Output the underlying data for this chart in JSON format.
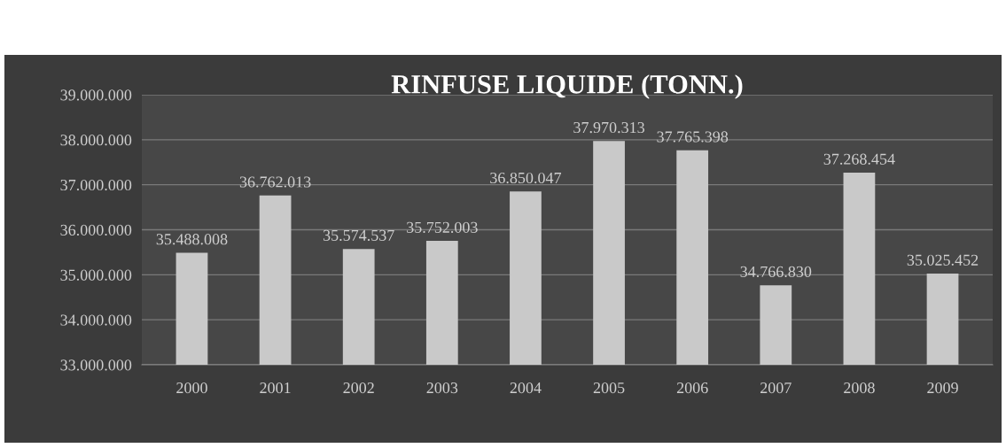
{
  "chart_data": {
    "type": "bar",
    "title": "RINFUSE LIQUIDE (TONN.)",
    "categories": [
      "2000",
      "2001",
      "2002",
      "2003",
      "2004",
      "2005",
      "2006",
      "2007",
      "2008",
      "2009"
    ],
    "values": [
      35488008,
      36762013,
      35574537,
      35752003,
      36850047,
      37970313,
      37765398,
      34766830,
      37268454,
      35025452
    ],
    "value_labels": [
      "35.488.008",
      "36.762.013",
      "35.574.537",
      "35.752.003",
      "36.850.047",
      "37.970.313",
      "37.765.398",
      "34.766.830",
      "37.268.454",
      "35.025.452"
    ],
    "color": "#c9c9c9",
    "ylim": [
      33000000,
      39000000
    ],
    "yticks": [
      {
        "value": 33000000,
        "label": "33.000.000"
      },
      {
        "value": 34000000,
        "label": "34.000.000"
      },
      {
        "value": 35000000,
        "label": "35.000.000"
      },
      {
        "value": 36000000,
        "label": "36.000.000"
      },
      {
        "value": 37000000,
        "label": "37.000.000"
      },
      {
        "value": 38000000,
        "label": "38.000.000"
      },
      {
        "value": 39000000,
        "label": "39.000.000"
      }
    ],
    "grid": "y"
  }
}
